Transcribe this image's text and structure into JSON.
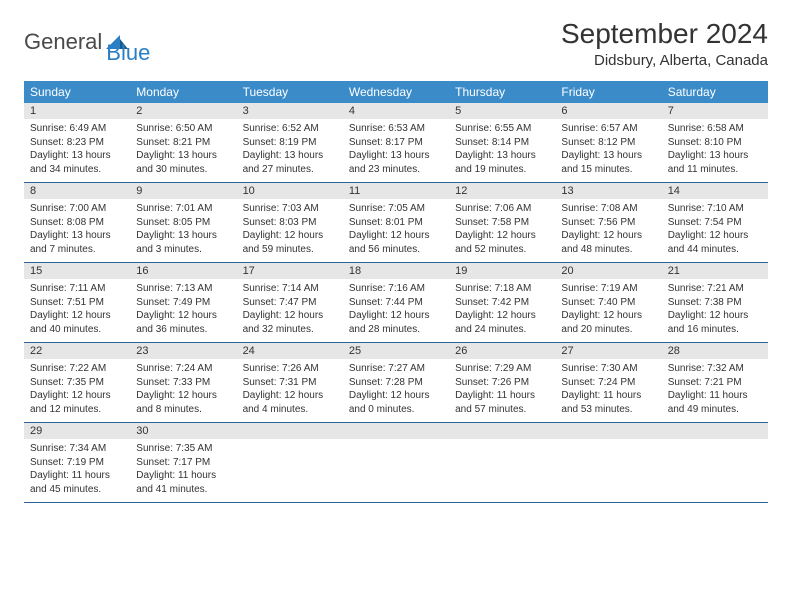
{
  "logo": {
    "text1": "General",
    "text2": "Blue"
  },
  "title": "September 2024",
  "location": "Didsbury, Alberta, Canada",
  "colors": {
    "header_bg": "#3b8bc9",
    "header_text": "#ffffff",
    "daynum_bg": "#e6e6e6",
    "row_border": "#2a6496",
    "logo_blue": "#2a7ec4",
    "logo_gray": "#4a4a4a"
  },
  "weekdays": [
    "Sunday",
    "Monday",
    "Tuesday",
    "Wednesday",
    "Thursday",
    "Friday",
    "Saturday"
  ],
  "days": [
    {
      "n": 1,
      "sr": "6:49 AM",
      "ss": "8:23 PM",
      "dl": "13 hours and 34 minutes."
    },
    {
      "n": 2,
      "sr": "6:50 AM",
      "ss": "8:21 PM",
      "dl": "13 hours and 30 minutes."
    },
    {
      "n": 3,
      "sr": "6:52 AM",
      "ss": "8:19 PM",
      "dl": "13 hours and 27 minutes."
    },
    {
      "n": 4,
      "sr": "6:53 AM",
      "ss": "8:17 PM",
      "dl": "13 hours and 23 minutes."
    },
    {
      "n": 5,
      "sr": "6:55 AM",
      "ss": "8:14 PM",
      "dl": "13 hours and 19 minutes."
    },
    {
      "n": 6,
      "sr": "6:57 AM",
      "ss": "8:12 PM",
      "dl": "13 hours and 15 minutes."
    },
    {
      "n": 7,
      "sr": "6:58 AM",
      "ss": "8:10 PM",
      "dl": "13 hours and 11 minutes."
    },
    {
      "n": 8,
      "sr": "7:00 AM",
      "ss": "8:08 PM",
      "dl": "13 hours and 7 minutes."
    },
    {
      "n": 9,
      "sr": "7:01 AM",
      "ss": "8:05 PM",
      "dl": "13 hours and 3 minutes."
    },
    {
      "n": 10,
      "sr": "7:03 AM",
      "ss": "8:03 PM",
      "dl": "12 hours and 59 minutes."
    },
    {
      "n": 11,
      "sr": "7:05 AM",
      "ss": "8:01 PM",
      "dl": "12 hours and 56 minutes."
    },
    {
      "n": 12,
      "sr": "7:06 AM",
      "ss": "7:58 PM",
      "dl": "12 hours and 52 minutes."
    },
    {
      "n": 13,
      "sr": "7:08 AM",
      "ss": "7:56 PM",
      "dl": "12 hours and 48 minutes."
    },
    {
      "n": 14,
      "sr": "7:10 AM",
      "ss": "7:54 PM",
      "dl": "12 hours and 44 minutes."
    },
    {
      "n": 15,
      "sr": "7:11 AM",
      "ss": "7:51 PM",
      "dl": "12 hours and 40 minutes."
    },
    {
      "n": 16,
      "sr": "7:13 AM",
      "ss": "7:49 PM",
      "dl": "12 hours and 36 minutes."
    },
    {
      "n": 17,
      "sr": "7:14 AM",
      "ss": "7:47 PM",
      "dl": "12 hours and 32 minutes."
    },
    {
      "n": 18,
      "sr": "7:16 AM",
      "ss": "7:44 PM",
      "dl": "12 hours and 28 minutes."
    },
    {
      "n": 19,
      "sr": "7:18 AM",
      "ss": "7:42 PM",
      "dl": "12 hours and 24 minutes."
    },
    {
      "n": 20,
      "sr": "7:19 AM",
      "ss": "7:40 PM",
      "dl": "12 hours and 20 minutes."
    },
    {
      "n": 21,
      "sr": "7:21 AM",
      "ss": "7:38 PM",
      "dl": "12 hours and 16 minutes."
    },
    {
      "n": 22,
      "sr": "7:22 AM",
      "ss": "7:35 PM",
      "dl": "12 hours and 12 minutes."
    },
    {
      "n": 23,
      "sr": "7:24 AM",
      "ss": "7:33 PM",
      "dl": "12 hours and 8 minutes."
    },
    {
      "n": 24,
      "sr": "7:26 AM",
      "ss": "7:31 PM",
      "dl": "12 hours and 4 minutes."
    },
    {
      "n": 25,
      "sr": "7:27 AM",
      "ss": "7:28 PM",
      "dl": "12 hours and 0 minutes."
    },
    {
      "n": 26,
      "sr": "7:29 AM",
      "ss": "7:26 PM",
      "dl": "11 hours and 57 minutes."
    },
    {
      "n": 27,
      "sr": "7:30 AM",
      "ss": "7:24 PM",
      "dl": "11 hours and 53 minutes."
    },
    {
      "n": 28,
      "sr": "7:32 AM",
      "ss": "7:21 PM",
      "dl": "11 hours and 49 minutes."
    },
    {
      "n": 29,
      "sr": "7:34 AM",
      "ss": "7:19 PM",
      "dl": "11 hours and 45 minutes."
    },
    {
      "n": 30,
      "sr": "7:35 AM",
      "ss": "7:17 PM",
      "dl": "11 hours and 41 minutes."
    }
  ],
  "labels": {
    "sunrise": "Sunrise:",
    "sunset": "Sunset:",
    "daylight": "Daylight:"
  }
}
